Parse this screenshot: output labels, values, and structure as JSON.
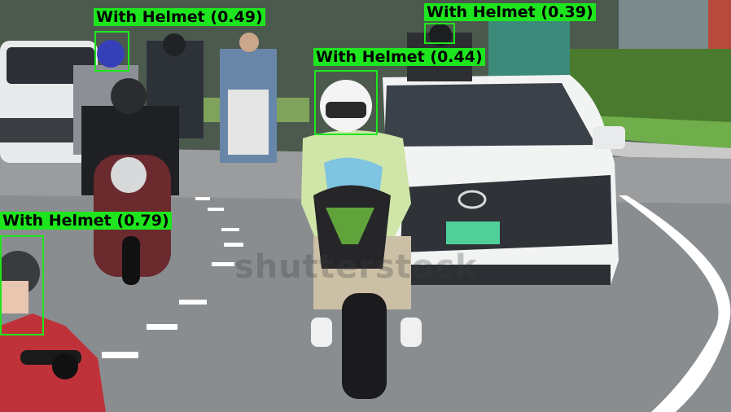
{
  "watermark": "shutterstock",
  "detections": [
    {
      "label": "With Helmet",
      "confidence": "(0.49)"
    },
    {
      "label": "With Helmet",
      "confidence": "(0.39)"
    },
    {
      "label": "With Helmet",
      "confidence": "(0.44)"
    },
    {
      "label": "With Helmet",
      "confidence": "(0.79)"
    }
  ],
  "colors": {
    "box": "#1ee61e",
    "road": "#8a8d90",
    "grass": "#6fae4a",
    "car": "#f2f3f3",
    "plate": "#4fcf9a"
  }
}
